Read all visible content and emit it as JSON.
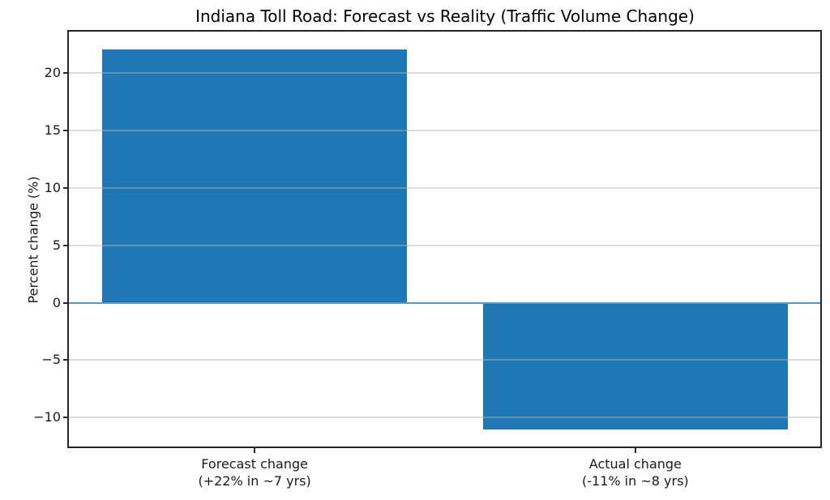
{
  "chart_data": {
    "type": "bar",
    "title": "Indiana Toll Road: Forecast vs Reality (Traffic Volume Change)",
    "ylabel": "Percent change (%)",
    "xlabel": "",
    "categories": [
      "Forecast change\n(+22% in ~7 yrs)",
      "Actual change\n(-11% in ~8 yrs)"
    ],
    "values": [
      22,
      -11
    ],
    "bar_color": "#1f77b4",
    "zero_line_color": "#5799c7",
    "grid": true,
    "grid_color": "rgba(176,176,176,0.45)",
    "spine_color": "#262626",
    "text_color": "#1a1a1a",
    "ylim": [
      -12.65,
      23.65
    ],
    "xlim": [
      -0.49,
      1.49
    ],
    "bar_width": 0.8,
    "yticks": [
      {
        "value": -10,
        "label": "−10"
      },
      {
        "value": -5,
        "label": "−5"
      },
      {
        "value": 0,
        "label": "0"
      },
      {
        "value": 5,
        "label": "5"
      },
      {
        "value": 10,
        "label": "10"
      },
      {
        "value": 15,
        "label": "15"
      },
      {
        "value": 20,
        "label": "20"
      }
    ],
    "legend_position": "none"
  }
}
